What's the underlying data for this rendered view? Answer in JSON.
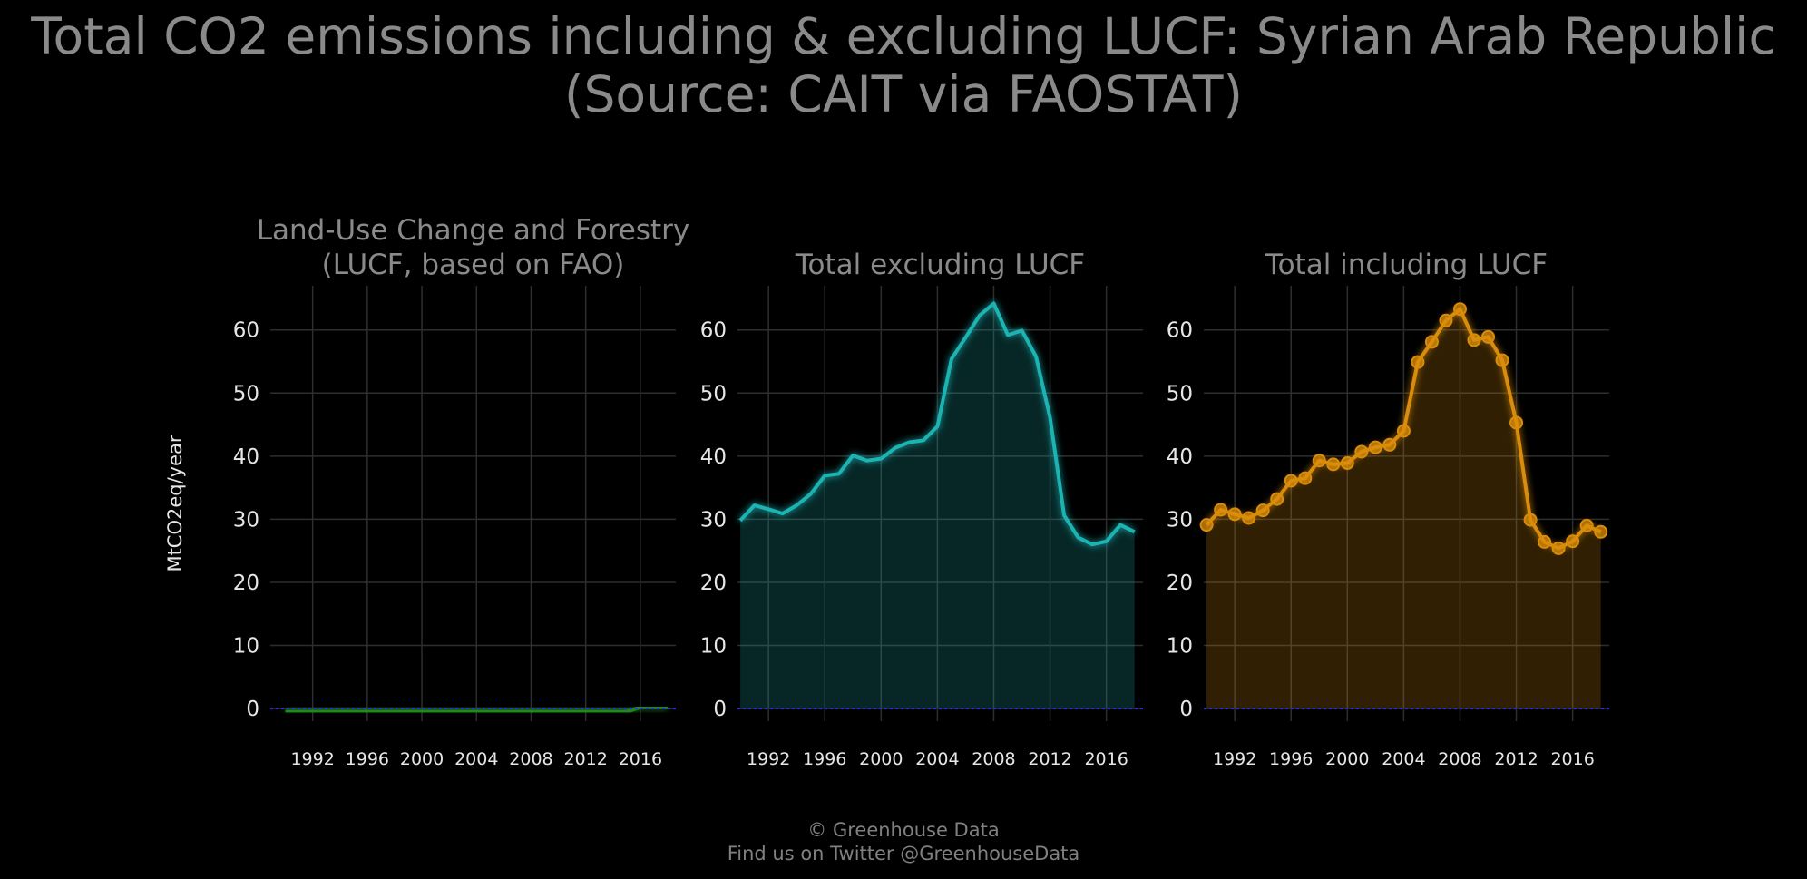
{
  "title": {
    "line1": "Total CO2 emissions including & excluding LUCF: Syrian Arab Republic",
    "line2": "(Source: CAIT via FAOSTAT)"
  },
  "footer": {
    "line1": "© Greenhouse Data",
    "line2": "Find us on Twitter @GreenhouseData"
  },
  "colors": {
    "background": "#000000",
    "grid": "#2e2e2e",
    "text_muted": "#8a8a8a",
    "tick_text": "#e6e6e6",
    "lucf": "#1f8a1f",
    "excl": "#1fb3b3",
    "incl": "#d98c0a",
    "zero_line": "#2b2bd9"
  },
  "chart_data": [
    {
      "type": "area",
      "title_lines": [
        "Land-Use Change and Forestry",
        "(LUCF, based on FAO)"
      ],
      "ylabel": "MtCO2eq/year",
      "xlabel": "",
      "ylim": [
        -2,
        67
      ],
      "xlim": [
        1988.9,
        2018.6
      ],
      "yticks": [
        0,
        10,
        20,
        30,
        40,
        50,
        60
      ],
      "xticks": [
        1992,
        1996,
        2000,
        2004,
        2008,
        2012,
        2016
      ],
      "grid": true,
      "show_markers": false,
      "color": "#1f8a1f",
      "series": [
        {
          "x": [
            1990,
            1991,
            1992,
            1993,
            1994,
            1995,
            1996,
            1997,
            1998,
            1999,
            2000,
            2001,
            2002,
            2003,
            2004,
            2005,
            2006,
            2007,
            2008,
            2009,
            2010,
            2011,
            2012,
            2013,
            2014,
            2015,
            2016,
            2017,
            2018
          ],
          "values": [
            -0.5,
            -0.5,
            -0.5,
            -0.5,
            -0.5,
            -0.5,
            -0.5,
            -0.5,
            -0.5,
            -0.5,
            -0.5,
            -0.5,
            -0.5,
            -0.5,
            -0.5,
            -0.5,
            -0.5,
            -0.5,
            -0.5,
            -0.5,
            -0.5,
            -0.5,
            -0.5,
            -0.5,
            -0.5,
            -0.5,
            0.2,
            0.2,
            0.2
          ]
        }
      ]
    },
    {
      "type": "area",
      "title_lines": [
        "Total excluding LUCF"
      ],
      "xlabel": "",
      "ylim": [
        -2,
        67
      ],
      "xlim": [
        1989.8,
        2018.6
      ],
      "yticks": [
        0,
        10,
        20,
        30,
        40,
        50,
        60
      ],
      "xticks": [
        1992,
        1996,
        2000,
        2004,
        2008,
        2012,
        2016
      ],
      "grid": true,
      "show_markers": false,
      "color": "#1fb3b3",
      "series": [
        {
          "x": [
            1990,
            1991,
            1992,
            1993,
            1994,
            1995,
            1996,
            1997,
            1998,
            1999,
            2000,
            2001,
            2002,
            2003,
            2004,
            2005,
            2006,
            2007,
            2008,
            2009,
            2010,
            2011,
            2012,
            2013,
            2014,
            2015,
            2016,
            2017,
            2018
          ],
          "values": [
            29.8,
            32.2,
            31.6,
            30.9,
            32.2,
            34.0,
            36.9,
            37.2,
            40.1,
            39.3,
            39.6,
            41.3,
            42.2,
            42.5,
            44.7,
            55.4,
            58.8,
            62.3,
            64.2,
            59.2,
            59.9,
            55.8,
            46.1,
            30.6,
            27.1,
            26.0,
            26.5,
            29.1,
            28.0
          ]
        }
      ]
    },
    {
      "type": "area",
      "title_lines": [
        "Total including LUCF"
      ],
      "xlabel": "",
      "ylim": [
        -2,
        67
      ],
      "xlim": [
        1989.8,
        2018.6
      ],
      "yticks": [
        0,
        10,
        20,
        30,
        40,
        50,
        60
      ],
      "xticks": [
        1992,
        1996,
        2000,
        2004,
        2008,
        2012,
        2016
      ],
      "grid": true,
      "show_markers": true,
      "color": "#d98c0a",
      "series": [
        {
          "x": [
            1990,
            1991,
            1992,
            1993,
            1994,
            1995,
            1996,
            1997,
            1998,
            1999,
            2000,
            2001,
            2002,
            2003,
            2004,
            2005,
            2006,
            2007,
            2008,
            2009,
            2010,
            2011,
            2012,
            2013,
            2014,
            2015,
            2016,
            2017,
            2018
          ],
          "values": [
            29.1,
            31.5,
            30.8,
            30.2,
            31.4,
            33.2,
            36.1,
            36.5,
            39.3,
            38.7,
            38.9,
            40.7,
            41.4,
            41.8,
            44.0,
            54.9,
            58.1,
            61.5,
            63.3,
            58.4,
            58.9,
            55.2,
            45.3,
            29.9,
            26.4,
            25.4,
            26.5,
            29.0,
            28.0
          ]
        }
      ]
    }
  ]
}
